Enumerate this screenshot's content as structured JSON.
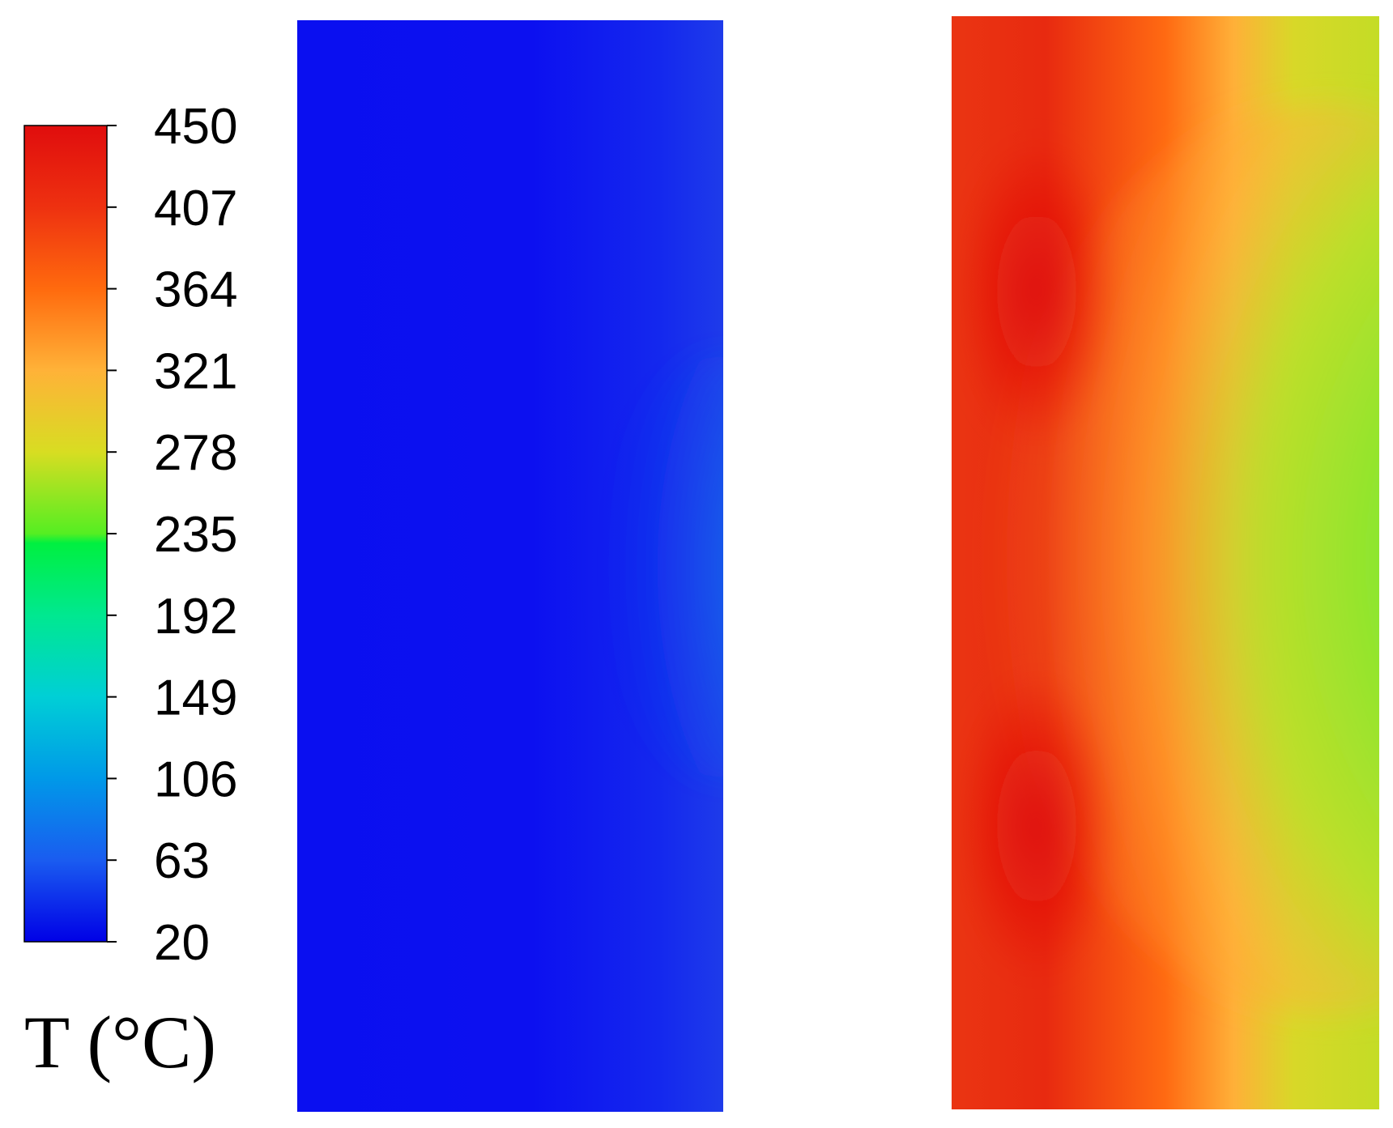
{
  "chart_data": {
    "type": "heatmap",
    "quantity_label": "T (°C)",
    "colorbar": {
      "min": 20,
      "max": 450,
      "orientation": "vertical",
      "placement": "left",
      "ticks": [
        "450",
        "407",
        "364",
        "321",
        "278",
        "235",
        "192",
        "149",
        "106",
        "63",
        "20"
      ],
      "colorscale": [
        {
          "value": 20,
          "color": "#0000e6"
        },
        {
          "value": 63,
          "color": "#1a5cf0"
        },
        {
          "value": 106,
          "color": "#0099e8"
        },
        {
          "value": 149,
          "color": "#00cfd6"
        },
        {
          "value": 192,
          "color": "#00e890"
        },
        {
          "value": 230,
          "color": "#00f040"
        },
        {
          "value": 235,
          "color": "#55ee22"
        },
        {
          "value": 278,
          "color": "#d8dd22"
        },
        {
          "value": 321,
          "color": "#ffb238"
        },
        {
          "value": 364,
          "color": "#ff6a0e"
        },
        {
          "value": 407,
          "color": "#ee3110"
        },
        {
          "value": 450,
          "color": "#e00d0d"
        }
      ]
    },
    "panels": [
      {
        "id": "left-field",
        "description_values": {
          "background": 25,
          "right_edge_center_peak": 105
        }
      },
      {
        "id": "right-field",
        "description_values": {
          "left_edge": 420,
          "hot_spots": 450,
          "center_right_minimum": 235,
          "right_edge": 275
        }
      }
    ]
  }
}
